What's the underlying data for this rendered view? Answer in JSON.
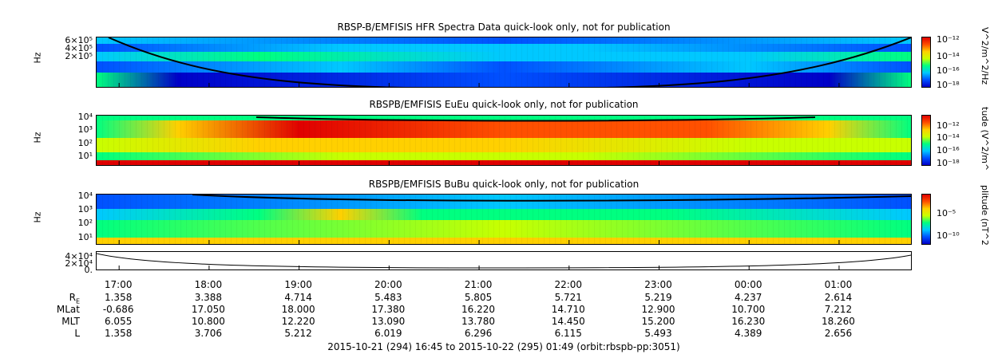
{
  "panels": [
    {
      "title": "RBSP-B/EMFISIS  HFR Spectra Data quick-look only, not for publication",
      "ylabel": "Hz",
      "yticks": [
        "6×10⁵",
        "4×10⁵",
        "2×10⁵"
      ],
      "cbar_label": "V^2/m^2/Hz",
      "cbar_ticks": [
        "10⁻¹²",
        "10⁻¹⁴",
        "10⁻¹⁶",
        "10⁻¹⁸"
      ]
    },
    {
      "title": "RBSPB/EMFISIS  EuEu quick-look only, not for publication",
      "ylabel": "Hz",
      "yticks": [
        "10⁴",
        "10³",
        "10²",
        "10¹"
      ],
      "cbar_label": "tude (V^2/m^",
      "cbar_ticks": [
        "10⁻¹²",
        "10⁻¹⁴",
        "10⁻¹⁶",
        "10⁻¹⁸"
      ]
    },
    {
      "title": "RBSPB/EMFISIS  BuBu quick-look only, not for publication",
      "ylabel": "Hz",
      "yticks": [
        "10⁴",
        "10³",
        "10²",
        "10¹"
      ],
      "cbar_label": "plitude (nT^2",
      "cbar_ticks": [
        "10⁻⁵",
        "10⁻¹⁰"
      ]
    },
    {
      "title": "",
      "ylabel": "",
      "yticks": [
        "4×10⁴",
        "2×10⁴",
        "0."
      ],
      "cbar_label": "",
      "cbar_ticks": []
    }
  ],
  "chart_data": {
    "type": "heatmap",
    "x_ticks": [
      "17:00",
      "18:00",
      "19:00",
      "20:00",
      "21:00",
      "22:00",
      "23:00",
      "00:00",
      "01:00"
    ],
    "ephemeris": [
      {
        "label": "R",
        "sub": "E",
        "values": [
          "1.358",
          "3.388",
          "4.714",
          "5.483",
          "5.805",
          "5.721",
          "5.219",
          "4.237",
          "2.614"
        ]
      },
      {
        "label": "MLat",
        "sub": "",
        "values": [
          "-0.686",
          "17.050",
          "18.000",
          "17.380",
          "16.220",
          "14.710",
          "12.900",
          "10.700",
          "7.212"
        ]
      },
      {
        "label": "MLT",
        "sub": "",
        "values": [
          "6.055",
          "10.800",
          "12.220",
          "13.090",
          "13.780",
          "14.450",
          "15.200",
          "16.230",
          "18.260"
        ]
      },
      {
        "label": "L",
        "sub": "",
        "values": [
          "1.358",
          "3.706",
          "5.212",
          "6.019",
          "6.296",
          "6.115",
          "5.493",
          "4.389",
          "2.656"
        ]
      }
    ],
    "time_range_hours": [
      16.75,
      25.8167
    ],
    "footer": "2015-10-21 (294) 16:45 to 2015-10-22 (295) 01:49 (orbit:rbspb-pp:3051)"
  },
  "colors": {
    "spectrum": [
      "#0000c8",
      "#0050ff",
      "#00c8ff",
      "#00ff80",
      "#c8ff00",
      "#ffd000",
      "#ff5000",
      "#e00000"
    ]
  }
}
